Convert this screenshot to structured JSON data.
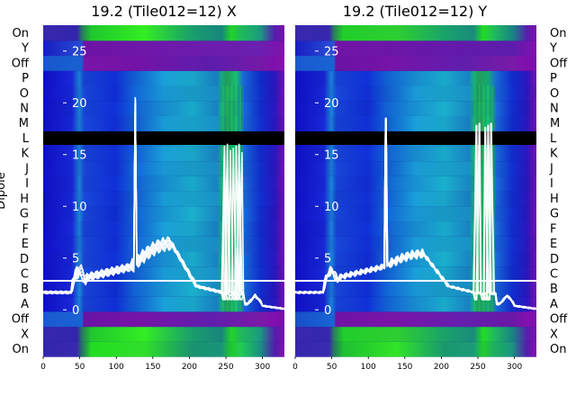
{
  "chart_data": {
    "type": "heatmap",
    "ylabel": "Dipole",
    "row_labels": [
      "On",
      "X",
      "Off",
      "A",
      "B",
      "C",
      "D",
      "E",
      "F",
      "G",
      "H",
      "I",
      "J",
      "K",
      "L",
      "M",
      "N",
      "O",
      "P",
      "Off",
      "Y",
      "On"
    ],
    "x_ticks": [
      0,
      50,
      100,
      150,
      200,
      250,
      300
    ],
    "xlim": [
      0,
      330
    ],
    "overlay_ticks": [
      0,
      5,
      10,
      15,
      20,
      25
    ],
    "overlay_ylim": [
      -4.5,
      27.5
    ],
    "colors": {
      "flagged": "#000000",
      "divider": "#ffffff",
      "trace": "#ffffff"
    },
    "panels": [
      {
        "title": "19.2 (Tile012=12) X",
        "spike_x": 126,
        "spike_peak": 20.5,
        "second_spike_peak": 16.0,
        "hump_peak": 6.5,
        "burst_range": [
          245,
          272
        ]
      },
      {
        "title": "19.2 (Tile012=12) Y",
        "spike_x": 124,
        "spike_peak": 18.5,
        "second_spike_peak": 18.0,
        "hump_peak": 5.5,
        "burst_range": [
          245,
          272
        ]
      }
    ]
  }
}
